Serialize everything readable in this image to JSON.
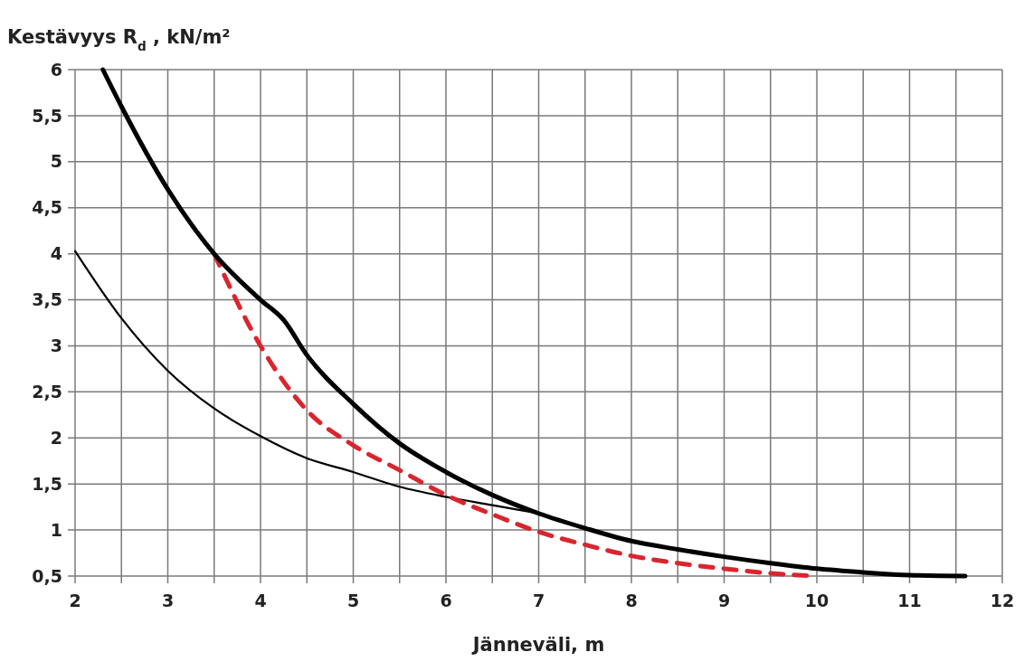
{
  "chart_data": {
    "type": "line",
    "ylabel": "Kestävyys R$_{d}$ , kN/m²",
    "xlabel": "Jänneväli, m",
    "xlim": [
      2,
      12
    ],
    "xticks": [
      2,
      3,
      4,
      5,
      6,
      7,
      8,
      9,
      10,
      11,
      12
    ],
    "ylim": [
      0.5,
      6
    ],
    "yticks": [
      {
        "value": 0.5,
        "label": "0,5"
      },
      1,
      {
        "value": 1.5,
        "label": "1,5"
      },
      2,
      {
        "value": 2.5,
        "label": "2,5"
      },
      3,
      {
        "value": 3.5,
        "label": "3,5"
      },
      4,
      {
        "value": 4.5,
        "label": "4,5"
      },
      5,
      {
        "value": 5.5,
        "label": "5,5"
      },
      6
    ],
    "grid": true,
    "series": [
      {
        "color": "#000000",
        "line_style": "solid",
        "x": [
          2,
          2.5,
          3,
          3.5,
          4,
          4.5,
          5,
          5.5,
          6,
          6.5,
          7
        ],
        "values": [
          4.03,
          3.3,
          2.73,
          2.32,
          2.02,
          1.78,
          1.63,
          1.47,
          1.36,
          1.27,
          1.18
        ]
      },
      {
        "color": "#d9252f",
        "line_style": "dashed",
        "x": [
          3.5,
          4,
          4.5,
          5,
          5.5,
          6,
          6.5,
          7,
          7.5,
          8,
          8.5,
          9,
          9.5,
          10
        ],
        "values": [
          4.0,
          3.0,
          2.3,
          1.92,
          1.65,
          1.38,
          1.17,
          0.98,
          0.84,
          0.72,
          0.64,
          0.58,
          0.53,
          0.5
        ]
      },
      {
        "color": "#000000",
        "line_style": "solid",
        "x": [
          2.3,
          2.5,
          3,
          3.5,
          4,
          4.25,
          4.5,
          5,
          5.5,
          6,
          6.5,
          7,
          7.5,
          8,
          8.5,
          9,
          9.5,
          10,
          10.5,
          11,
          11.6
        ],
        "values": [
          6,
          5.6,
          4.7,
          4.0,
          3.5,
          3.28,
          2.9,
          2.37,
          1.94,
          1.63,
          1.38,
          1.18,
          1.02,
          0.88,
          0.79,
          0.71,
          0.64,
          0.58,
          0.54,
          0.51,
          0.5
        ]
      }
    ]
  }
}
